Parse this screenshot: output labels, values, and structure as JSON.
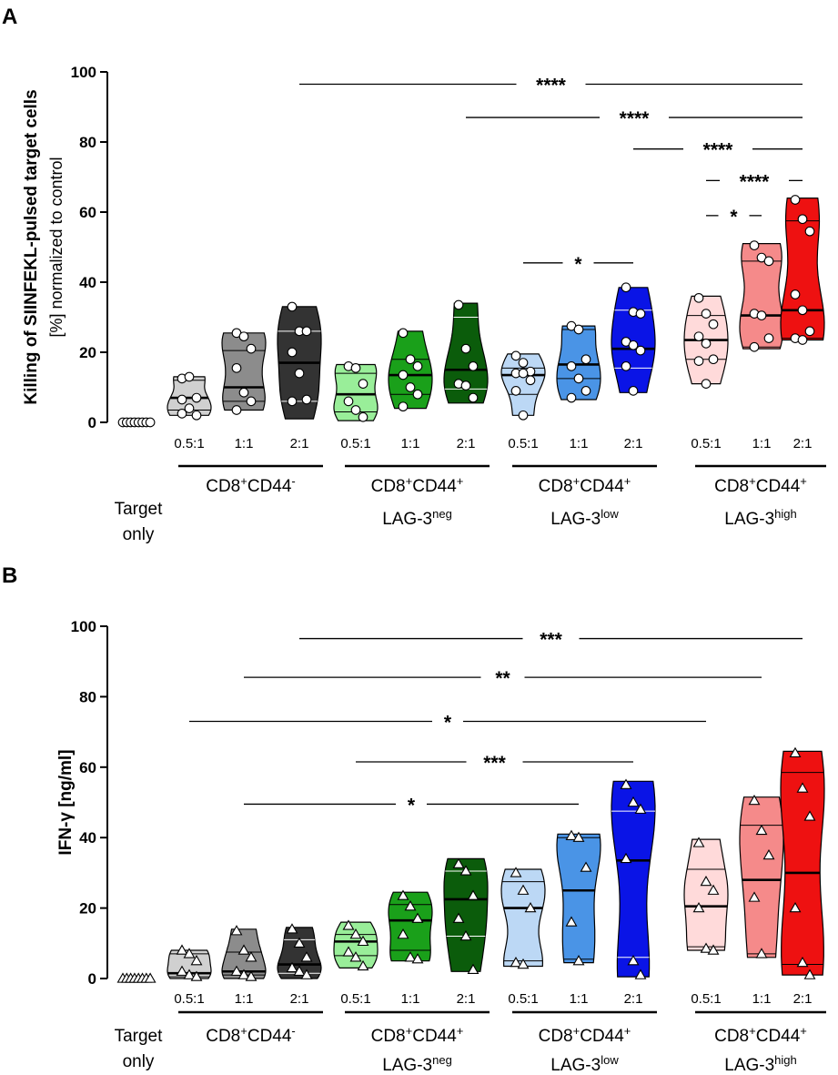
{
  "chart_data": [
    {
      "panel": "A",
      "type": "violin",
      "ylabel": "Killing of SIINFEKL-pulsed target cells",
      "ylabel_sub": "[%] normalized to control",
      "ylim": [
        0,
        100
      ],
      "yticks": [
        0,
        20,
        40,
        60,
        80,
        100
      ],
      "ytick_labels": [
        "0",
        "20",
        "40",
        "60",
        "80",
        "100"
      ],
      "marker": "circle",
      "control": {
        "label": [
          "Target",
          "only"
        ],
        "values": [
          0,
          0,
          0,
          0,
          0,
          0,
          0,
          0
        ],
        "color": "#ffffff"
      },
      "groups": [
        {
          "label": "CD8",
          "sup": "+",
          "label2": "CD44",
          "sup2": "-",
          "label3": "",
          "sup3": "",
          "ratios": [
            {
              "ratio": "0.5:1",
              "color": "#d0d0d0",
              "min": 2,
              "max": 13,
              "q1": 3.5,
              "median": 7,
              "q3": 12,
              "points": [
                12.5,
                13,
                7,
                6.5,
                4,
                2,
                2.5
              ]
            },
            {
              "ratio": "1:1",
              "color": "#8c8c8c",
              "min": 3.5,
              "max": 25.5,
              "q1": 6,
              "median": 10,
              "q3": 20.5,
              "points": [
                25.5,
                24.5,
                21,
                15.5,
                8.5,
                6,
                3.5
              ]
            },
            {
              "ratio": "2:1",
              "color": "#333333",
              "min": 1,
              "max": 33,
              "q1": 6,
              "median": 17,
              "q3": 26,
              "points": [
                33,
                26,
                26,
                20,
                14,
                6.5,
                6
              ]
            }
          ]
        },
        {
          "label": "CD8",
          "sup": "+",
          "label2": "CD44",
          "sup2": "+",
          "label3": "LAG-3",
          "sup3": "neg",
          "ratios": [
            {
              "ratio": "0.5:1",
              "color": "#99ee99",
              "min": 0.5,
              "max": 16.5,
              "q1": 3,
              "median": 8,
              "q3": 14,
              "points": [
                16,
                15.5,
                11,
                6,
                3.5,
                1.5
              ]
            },
            {
              "ratio": "1:1",
              "color": "#1aa01a",
              "min": 4,
              "max": 26,
              "q1": 8,
              "median": 13.5,
              "q3": 18,
              "points": [
                25.5,
                18,
                16,
                13.5,
                10,
                8,
                4.5
              ]
            },
            {
              "ratio": "2:1",
              "color": "#0b5c0b",
              "min": 5.5,
              "max": 34,
              "q1": 9.5,
              "median": 15,
              "q3": 30,
              "points": [
                33.5,
                21,
                16,
                11,
                10.5,
                7
              ]
            }
          ]
        },
        {
          "label": "CD8",
          "sup": "+",
          "label2": "CD44",
          "sup2": "+",
          "label3": "LAG-3",
          "sup3": "low",
          "ratios": [
            {
              "ratio": "0.5:1",
              "color": "#bcd8f5",
              "min": 2,
              "max": 19.5,
              "q1": 8,
              "median": 13.5,
              "q3": 15.5,
              "points": [
                19,
                17,
                14.5,
                14,
                14,
                12,
                9,
                2
              ]
            },
            {
              "ratio": "1:1",
              "color": "#4a94e6",
              "min": 6.5,
              "max": 27.5,
              "q1": 12.5,
              "median": 16.5,
              "q3": 26.5,
              "points": [
                27.5,
                26.5,
                18,
                16,
                12.5,
                9,
                7
              ]
            },
            {
              "ratio": "2:1",
              "color": "#0a14e6",
              "min": 8.5,
              "max": 38.5,
              "q1": 15.5,
              "median": 21,
              "q3": 32,
              "points": [
                38.5,
                31.5,
                31,
                23,
                22,
                20.5,
                16,
                9
              ]
            }
          ]
        },
        {
          "label": "CD8",
          "sup": "+",
          "label2": "CD44",
          "sup2": "+",
          "label3": "LAG-3",
          "sup3": "high",
          "ratios": [
            {
              "ratio": "0.5:1",
              "color": "#ffdada",
              "min": 11,
              "max": 36,
              "q1": 18,
              "median": 23.5,
              "q3": 30.5,
              "points": [
                35.5,
                31,
                28,
                24.5,
                22.5,
                18,
                17.5,
                11
              ]
            },
            {
              "ratio": "1:1",
              "color": "#f58a8a",
              "min": 21,
              "max": 51,
              "q1": 21.5,
              "median": 30.5,
              "q3": 46,
              "points": [
                50.5,
                47,
                46,
                31,
                30.5,
                24,
                21.5
              ]
            },
            {
              "ratio": "2:1",
              "color": "#ee1111",
              "min": 23.5,
              "max": 64,
              "q1": 24,
              "median": 32,
              "q3": 57.5,
              "points": [
                63.5,
                58,
                54.5,
                36.5,
                32,
                26,
                24,
                23.5
              ]
            }
          ]
        }
      ],
      "significance": [
        {
          "label": "****",
          "from": [
            0,
            2
          ],
          "to": [
            3,
            2
          ],
          "y": 96.5
        },
        {
          "label": "****",
          "from": [
            1,
            2
          ],
          "to": [
            3,
            2
          ],
          "y": 87
        },
        {
          "label": "****",
          "from": [
            2,
            2
          ],
          "to": [
            3,
            2
          ],
          "y": 78
        },
        {
          "label": "****",
          "from": [
            3,
            0
          ],
          "to": [
            3,
            2
          ],
          "y": 69
        },
        {
          "label": "*",
          "from": [
            3,
            0
          ],
          "to": [
            3,
            1
          ],
          "y": 59
        },
        {
          "label": "*",
          "from": [
            2,
            0
          ],
          "to": [
            2,
            2
          ],
          "y": 45.5
        }
      ]
    },
    {
      "panel": "B",
      "type": "violin",
      "ylabel": "IFN-γ [ng/ml]",
      "ylabel_sub": "",
      "ylim": [
        0,
        100
      ],
      "yticks": [
        0,
        20,
        40,
        60,
        80,
        100
      ],
      "ytick_labels": [
        "0",
        "20",
        "40",
        "60",
        "80",
        "100"
      ],
      "marker": "triangle",
      "control": {
        "label": [
          "Target",
          "only"
        ],
        "values": [
          0,
          0,
          0,
          0,
          0,
          0,
          0,
          0
        ],
        "color": "#ffffff"
      },
      "groups": [
        {
          "label": "CD8",
          "sup": "+",
          "label2": "CD44",
          "sup2": "-",
          "label3": "",
          "sup3": "",
          "ratios": [
            {
              "ratio": "0.5:1",
              "color": "#d0d0d0",
              "min": 0,
              "max": 8,
              "q1": 0.5,
              "median": 1.5,
              "q3": 7,
              "points": [
                8,
                7,
                5,
                2,
                1,
                0.5
              ]
            },
            {
              "ratio": "1:1",
              "color": "#8c8c8c",
              "min": 0,
              "max": 14,
              "q1": 1,
              "median": 2,
              "q3": 7.5,
              "points": [
                13.5,
                8,
                6,
                2,
                1,
                0.5
              ]
            },
            {
              "ratio": "2:1",
              "color": "#333333",
              "min": 0,
              "max": 14.5,
              "q1": 1.5,
              "median": 4,
              "q3": 11,
              "points": [
                14,
                10,
                6,
                3,
                2,
                1
              ]
            }
          ]
        },
        {
          "label": "CD8",
          "sup": "+",
          "label2": "CD44",
          "sup2": "+",
          "label3": "LAG-3",
          "sup3": "neg",
          "ratios": [
            {
              "ratio": "0.5:1",
              "color": "#99ee99",
              "min": 3,
              "max": 16,
              "q1": 6.5,
              "median": 10.5,
              "q3": 12.5,
              "points": [
                15,
                12.5,
                10.5,
                7.5,
                6,
                3.5
              ]
            },
            {
              "ratio": "1:1",
              "color": "#1aa01a",
              "min": 5,
              "max": 24.5,
              "q1": 8,
              "median": 16.5,
              "q3": 21,
              "points": [
                23.5,
                20.5,
                17,
                12.5,
                6,
                5.5
              ]
            },
            {
              "ratio": "2:1",
              "color": "#0b5c0b",
              "min": 2,
              "max": 34,
              "q1": 12,
              "median": 22.5,
              "q3": 30.5,
              "points": [
                32.5,
                30.5,
                23.5,
                17,
                12,
                2.5
              ]
            }
          ]
        },
        {
          "label": "CD8",
          "sup": "+",
          "label2": "CD44",
          "sup2": "+",
          "label3": "LAG-3",
          "sup3": "low",
          "ratios": [
            {
              "ratio": "0.5:1",
              "color": "#bcd8f5",
              "min": 3.5,
              "max": 31,
              "q1": 5,
              "median": 20,
              "q3": 27.5,
              "points": [
                30,
                25,
                20,
                4.5,
                4
              ]
            },
            {
              "ratio": "1:1",
              "color": "#4a94e6",
              "min": 4.5,
              "max": 41,
              "q1": 5.5,
              "median": 25,
              "q3": 40,
              "points": [
                40.5,
                40,
                31.5,
                16,
                5
              ]
            },
            {
              "ratio": "2:1",
              "color": "#0a14e6",
              "min": 0.5,
              "max": 56,
              "q1": 6,
              "median": 33.5,
              "q3": 47.5,
              "points": [
                55,
                50,
                48,
                34,
                5,
                1
              ]
            }
          ]
        },
        {
          "label": "CD8",
          "sup": "+",
          "label2": "CD44",
          "sup2": "+",
          "label3": "LAG-3",
          "sup3": "high",
          "ratios": [
            {
              "ratio": "0.5:1",
              "color": "#ffdada",
              "min": 8,
              "max": 39.5,
              "q1": 9,
              "median": 20.5,
              "q3": 31,
              "points": [
                38.5,
                27.5,
                25,
                20,
                8.5,
                8
              ]
            },
            {
              "ratio": "1:1",
              "color": "#f58a8a",
              "min": 6,
              "max": 51.5,
              "q1": 7,
              "median": 28,
              "q3": 43.5,
              "points": [
                50.5,
                42,
                35,
                23,
                7
              ]
            },
            {
              "ratio": "2:1",
              "color": "#ee1111",
              "min": 1,
              "max": 64.5,
              "q1": 4,
              "median": 30,
              "q3": 58.5,
              "points": [
                64,
                54,
                46,
                20,
                4.5,
                1
              ]
            }
          ]
        }
      ],
      "significance": [
        {
          "label": "***",
          "from": [
            0,
            2
          ],
          "to": [
            3,
            2
          ],
          "y": 96.5
        },
        {
          "label": "**",
          "from": [
            0,
            1
          ],
          "to": [
            3,
            1
          ],
          "y": 85.5
        },
        {
          "label": "*",
          "from": [
            0,
            0
          ],
          "to": [
            3,
            0
          ],
          "y": 73
        },
        {
          "label": "***",
          "from": [
            1,
            0
          ],
          "to": [
            2,
            2
          ],
          "y": 61.5
        },
        {
          "label": "*",
          "from": [
            0,
            1
          ],
          "to": [
            2,
            1
          ],
          "y": 49.5
        }
      ]
    }
  ]
}
